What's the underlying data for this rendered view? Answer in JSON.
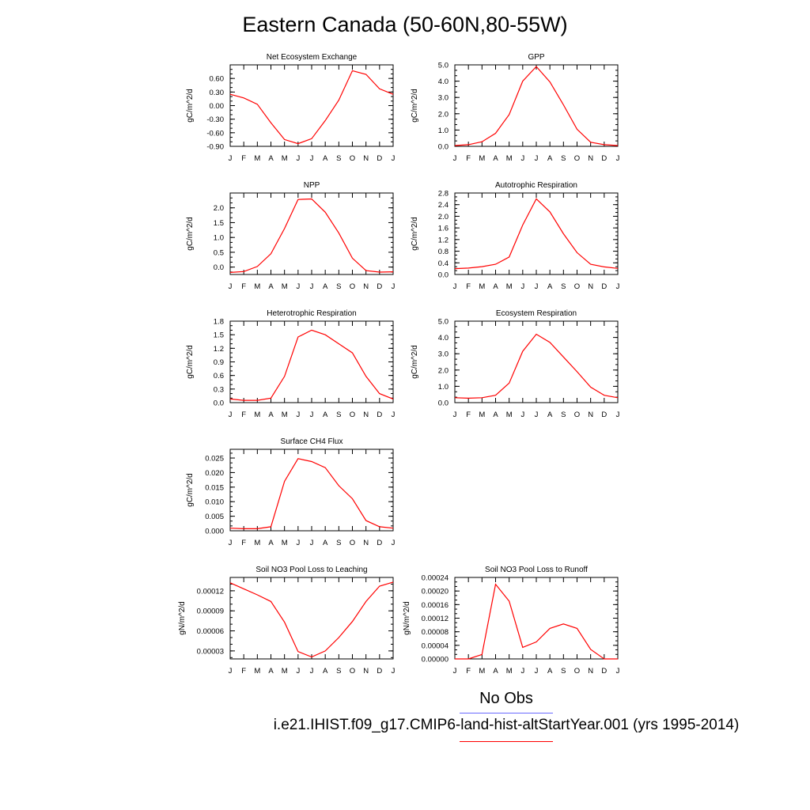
{
  "title": "Eastern Canada (50-60N,80-55W)",
  "months": [
    "J",
    "F",
    "M",
    "A",
    "M",
    "J",
    "J",
    "A",
    "S",
    "O",
    "N",
    "D",
    "J"
  ],
  "colors": {
    "model": "#ff0000",
    "obs": "#6b6bff",
    "axis": "#000000"
  },
  "legend": {
    "obs_label": "No Obs",
    "model_label": "i.e21.IHIST.f09_g17.CMIP6-land-hist-altStartYear.001 (yrs 1995-2014)"
  },
  "chart_data": [
    {
      "type": "line",
      "title": "Net Ecosystem Exchange",
      "ylabel": "gC/m^2/d",
      "ylim": [
        -0.9,
        0.9
      ],
      "yticks": [
        -0.9,
        -0.6,
        -0.3,
        0.0,
        0.3,
        0.6
      ],
      "ytick_labels": [
        "-0.90",
        "-0.60",
        "-0.30",
        "0.00",
        "0.30",
        "0.60"
      ],
      "x": [
        "J",
        "F",
        "M",
        "A",
        "M",
        "J",
        "J",
        "A",
        "S",
        "O",
        "N",
        "D",
        "J"
      ],
      "values": [
        0.25,
        0.17,
        0.03,
        -0.38,
        -0.75,
        -0.84,
        -0.73,
        -0.33,
        0.12,
        0.77,
        0.69,
        0.37,
        0.25
      ]
    },
    {
      "type": "line",
      "title": "GPP",
      "ylabel": "gC/m^2/d",
      "ylim": [
        0.0,
        5.0
      ],
      "yticks": [
        0.0,
        1.0,
        2.0,
        3.0,
        4.0,
        5.0
      ],
      "ytick_labels": [
        "0.0",
        "1.0",
        "2.0",
        "3.0",
        "4.0",
        "5.0"
      ],
      "x": [
        "J",
        "F",
        "M",
        "A",
        "M",
        "J",
        "J",
        "A",
        "S",
        "O",
        "N",
        "D",
        "J"
      ],
      "values": [
        0.05,
        0.1,
        0.28,
        0.8,
        1.95,
        4.0,
        4.9,
        3.95,
        2.55,
        1.05,
        0.25,
        0.1,
        0.05
      ]
    },
    {
      "type": "line",
      "title": "NPP",
      "ylabel": "gC/m^2/d",
      "ylim": [
        -0.25,
        2.5
      ],
      "yticks": [
        0.0,
        0.5,
        1.0,
        1.5,
        2.0
      ],
      "ytick_labels": [
        "0.0",
        "0.5",
        "1.0",
        "1.5",
        "2.0"
      ],
      "x": [
        "J",
        "F",
        "M",
        "A",
        "M",
        "J",
        "J",
        "A",
        "S",
        "O",
        "N",
        "D",
        "J"
      ],
      "values": [
        -0.18,
        -0.15,
        0.02,
        0.45,
        1.3,
        2.28,
        2.3,
        1.85,
        1.15,
        0.3,
        -0.12,
        -0.17,
        -0.16
      ]
    },
    {
      "type": "line",
      "title": "Autotrophic Respiration",
      "ylabel": "gC/m^2/d",
      "ylim": [
        0.0,
        2.8
      ],
      "yticks": [
        0.0,
        0.4,
        0.8,
        1.2,
        1.6,
        2.0,
        2.4,
        2.8
      ],
      "ytick_labels": [
        "0.0",
        "0.4",
        "0.8",
        "1.2",
        "1.6",
        "2.0",
        "2.4",
        "2.8"
      ],
      "x": [
        "J",
        "F",
        "M",
        "A",
        "M",
        "J",
        "J",
        "A",
        "S",
        "O",
        "N",
        "D",
        "J"
      ],
      "values": [
        0.2,
        0.22,
        0.27,
        0.35,
        0.6,
        1.7,
        2.6,
        2.15,
        1.4,
        0.75,
        0.35,
        0.26,
        0.21
      ]
    },
    {
      "type": "line",
      "title": "Heterotrophic Respiration",
      "ylabel": "gC/m^2/d",
      "ylim": [
        0.0,
        1.8
      ],
      "yticks": [
        0.0,
        0.3,
        0.6,
        0.9,
        1.2,
        1.5,
        1.8
      ],
      "ytick_labels": [
        "0.0",
        "0.3",
        "0.6",
        "0.9",
        "1.2",
        "1.5",
        "1.8"
      ],
      "x": [
        "J",
        "F",
        "M",
        "A",
        "M",
        "J",
        "J",
        "A",
        "S",
        "O",
        "N",
        "D",
        "J"
      ],
      "values": [
        0.08,
        0.05,
        0.05,
        0.1,
        0.58,
        1.45,
        1.6,
        1.5,
        1.3,
        1.1,
        0.58,
        0.2,
        0.08
      ]
    },
    {
      "type": "line",
      "title": "Ecosystem Respiration",
      "ylabel": "gC/m^2/d",
      "ylim": [
        0.0,
        5.0
      ],
      "yticks": [
        0.0,
        1.0,
        2.0,
        3.0,
        4.0,
        5.0
      ],
      "ytick_labels": [
        "0.0",
        "1.0",
        "2.0",
        "3.0",
        "4.0",
        "5.0"
      ],
      "x": [
        "J",
        "F",
        "M",
        "A",
        "M",
        "J",
        "J",
        "A",
        "S",
        "O",
        "N",
        "D",
        "J"
      ],
      "values": [
        0.3,
        0.27,
        0.3,
        0.45,
        1.2,
        3.15,
        4.2,
        3.7,
        2.8,
        1.9,
        0.95,
        0.45,
        0.3
      ]
    },
    {
      "type": "line",
      "title": "Surface CH4 Flux",
      "ylabel": "gC/m^2/d",
      "ylim": [
        0.0,
        0.028
      ],
      "yticks": [
        0.0,
        0.005,
        0.01,
        0.015,
        0.02,
        0.025
      ],
      "ytick_labels": [
        "0.000",
        "0.005",
        "0.010",
        "0.015",
        "0.020",
        "0.025"
      ],
      "x": [
        "J",
        "F",
        "M",
        "A",
        "M",
        "J",
        "J",
        "A",
        "S",
        "O",
        "N",
        "D",
        "J"
      ],
      "values": [
        0.0009,
        0.0007,
        0.0007,
        0.0014,
        0.017,
        0.0248,
        0.0238,
        0.0217,
        0.0155,
        0.011,
        0.0035,
        0.0014,
        0.0009
      ]
    },
    {
      "type": "line",
      "title": "Soil NO3 Pool Loss to Leaching",
      "ylabel": "gN/m^2/d",
      "ylim": [
        1.8e-05,
        0.00014
      ],
      "yticks": [
        3e-05,
        6e-05,
        9e-05,
        0.00012
      ],
      "ytick_labels": [
        "0.00003",
        "0.00006",
        "0.00009",
        "0.00012"
      ],
      "x": [
        "J",
        "F",
        "M",
        "A",
        "M",
        "J",
        "J",
        "A",
        "S",
        "O",
        "N",
        "D",
        "J"
      ],
      "values": [
        0.000132,
        0.000123,
        0.000114,
        0.000104,
        7.3e-05,
        2.9e-05,
        2.1e-05,
        3e-05,
        5e-05,
        7.4e-05,
        0.000104,
        0.000127,
        0.000133
      ]
    },
    {
      "type": "line",
      "title": "Soil NO3 Pool Loss to Runoff",
      "ylabel": "gN/m^2/d",
      "ylim": [
        0.0,
        0.00024
      ],
      "yticks": [
        0.0,
        4e-05,
        8e-05,
        0.00012,
        0.00016,
        0.0002,
        0.00024
      ],
      "ytick_labels": [
        "0.00000",
        "0.00004",
        "0.00008",
        "0.00012",
        "0.00016",
        "0.00020",
        "0.00024"
      ],
      "x": [
        "J",
        "F",
        "M",
        "A",
        "M",
        "J",
        "J",
        "A",
        "S",
        "O",
        "N",
        "D",
        "J"
      ],
      "values": [
        0.0,
        0.0,
        1.3e-05,
        0.00022,
        0.00017,
        3.4e-05,
        5e-05,
        9e-05,
        0.000103,
        9e-05,
        2.8e-05,
        0.0,
        0.0
      ]
    }
  ]
}
